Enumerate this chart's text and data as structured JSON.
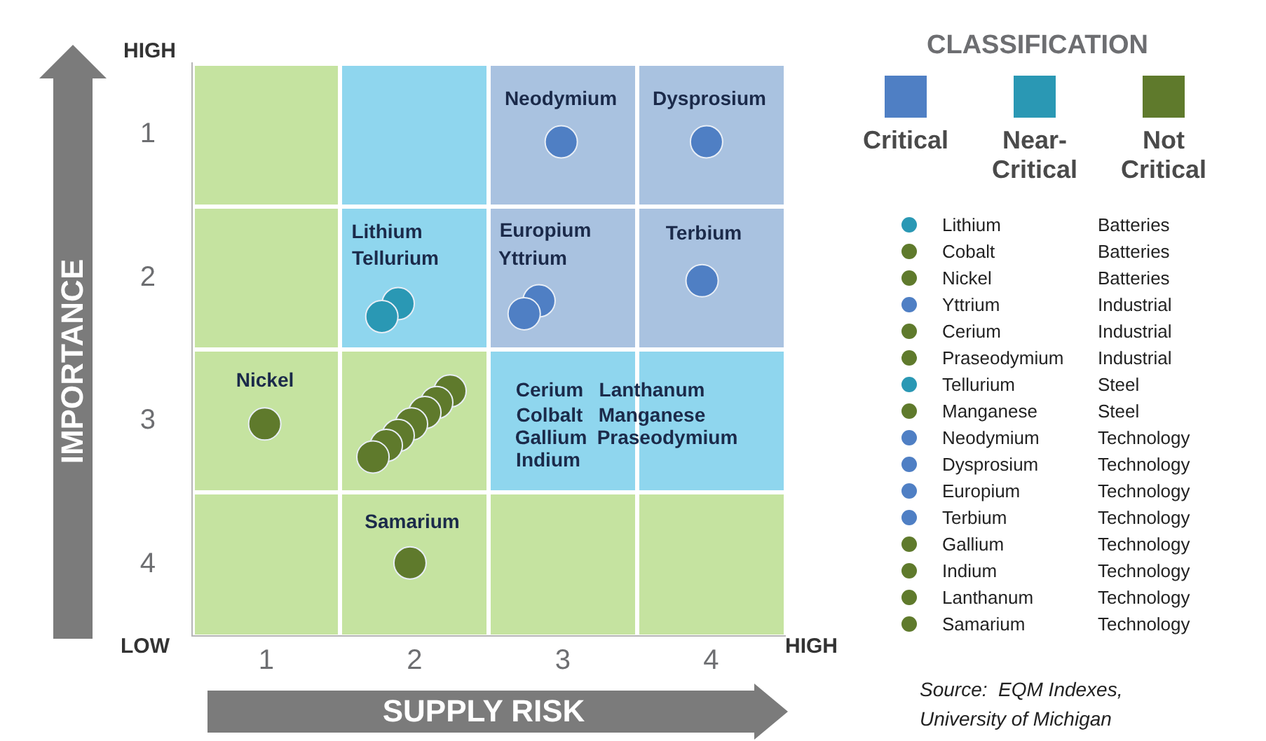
{
  "chart_data": [
    {
      "type": "scatter",
      "xlabel": "SUPPLY RISK",
      "ylabel": "IMPORTANCE",
      "legend_title": "CLASSIFICATION",
      "legend": "top right",
      "marker": "circle",
      "grid": false,
      "xlim": [
        0.5,
        4.5
      ],
      "ylim": [
        4.5,
        0.5
      ],
      "xticks": [
        1,
        2,
        3,
        4
      ],
      "yticks": [
        1,
        2,
        3,
        4
      ],
      "series": [
        {
          "name": "Critical",
          "color": "#4f7fc4",
          "x": [
            2.99,
            3.97,
            3.94,
            2.84,
            2.74
          ],
          "values": [
            1.05,
            1.05,
            2.02,
            2.16,
            2.25
          ]
        },
        {
          "name": "Near-Critical",
          "color": "#2a98b4",
          "x": [
            1.89,
            1.78
          ],
          "values": [
            2.18,
            2.27
          ]
        },
        {
          "name": "Not Critical",
          "color": "#5f7a2c",
          "x": [
            0.99,
            1.97,
            2.24,
            2.15,
            2.07,
            1.98,
            1.89,
            1.81,
            1.72
          ],
          "values": [
            3.02,
            3.99,
            2.79,
            2.87,
            2.94,
            3.02,
            3.1,
            3.17,
            3.25
          ]
        }
      ],
      "annotations": [
        "Neodymium",
        "Dysprosium",
        "Lithium",
        "Tellurium",
        "Europium",
        "Yttrium",
        "Terbium",
        "Nickel",
        "Samarium",
        "Cerium",
        "Colbalt",
        "Gallium",
        "Indium",
        "Lanthanum",
        "Manganese",
        "Praseodymium",
        "HIGH",
        "LOW",
        "HIGH",
        "Source:  EQM Indexes,\nUniversity of Michigan"
      ]
    },
    {
      "type": "other",
      "categories": [
        "Lithium",
        "Cobalt",
        "Nickel",
        "Yttrium",
        "Cerium",
        "Praseodymium",
        "Tellurium",
        "Manganese",
        "Neodymium",
        "Dysprosium",
        "Europium",
        "Terbium",
        "Gallium",
        "Indium",
        "Lanthanum",
        "Samarium"
      ],
      "colors": [
        "#2a98b4",
        "#5f7a2c",
        "#5f7a2c",
        "#4f7fc4",
        "#5f7a2c",
        "#5f7a2c",
        "#2a98b4",
        "#5f7a2c",
        "#4f7fc4",
        "#4f7fc4",
        "#4f7fc4",
        "#4f7fc4",
        "#5f7a2c",
        "#5f7a2c",
        "#5f7a2c",
        "#5f7a2c"
      ],
      "y2_categories": [
        "Batteries",
        "Batteries",
        "Batteries",
        "Industrial",
        "Industrial",
        "Industrial",
        "Steel",
        "Steel",
        "Technology",
        "Technology",
        "Technology",
        "Technology",
        "Technology",
        "Technology",
        "Technology",
        "Technology"
      ]
    }
  ]
}
